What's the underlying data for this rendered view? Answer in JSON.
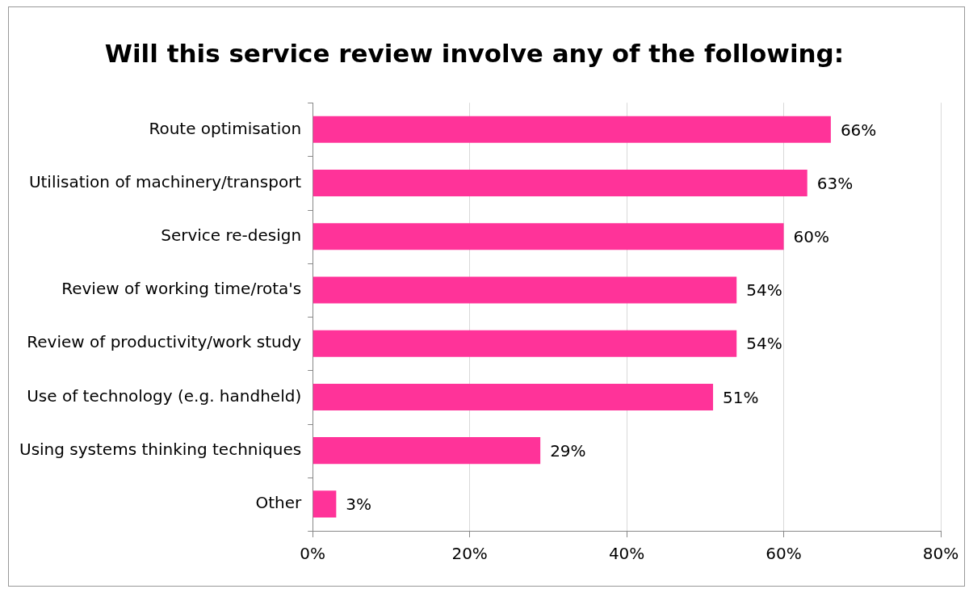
{
  "chart_data": {
    "type": "bar",
    "orientation": "horizontal",
    "title": "Will this service review involve any of the following:",
    "categories": [
      "Route optimisation",
      "Utilisation of machinery/transport",
      "Service re-design",
      "Review of working time/rota's",
      "Review of productivity/work study",
      "Use of technology (e.g. handheld)",
      "Using systems thinking techniques",
      "Other"
    ],
    "values": [
      66,
      63,
      60,
      54,
      54,
      51,
      29,
      3
    ],
    "value_labels": [
      "66%",
      "63%",
      "60%",
      "54%",
      "54%",
      "51%",
      "29%",
      "3%"
    ],
    "color": "#ff3399",
    "xlim": [
      0,
      80
    ],
    "xticks": [
      {
        "value": 0,
        "label": "0%"
      },
      {
        "value": 20,
        "label": "20%"
      },
      {
        "value": 40,
        "label": "40%"
      },
      {
        "value": 60,
        "label": "60%"
      },
      {
        "value": 80,
        "label": "80%"
      }
    ],
    "grid": "x",
    "legend": false
  }
}
